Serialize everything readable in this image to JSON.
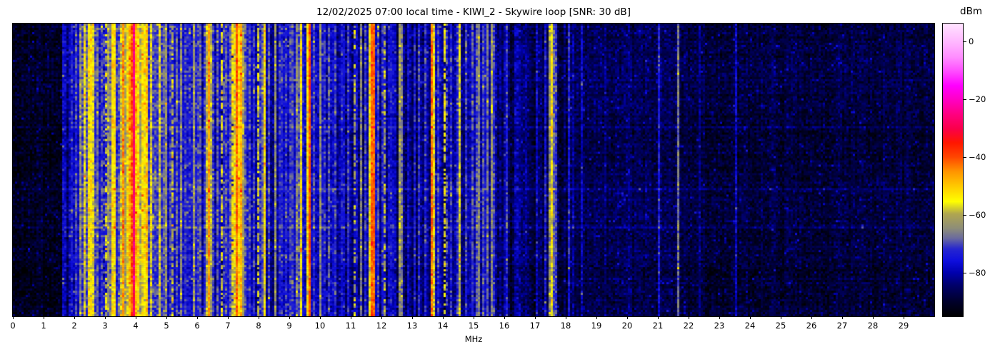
{
  "chart_data": {
    "type": "heatmap",
    "subtype": "spectrogram-waterfall",
    "title": "12/02/2025 07:00 local time - KIWI_2 - Skywire loop [SNR: 30 dB]",
    "xlabel": "MHz",
    "value_label": "dBm",
    "x_range_mhz": [
      0,
      30
    ],
    "x_ticks": [
      0,
      1,
      2,
      3,
      4,
      5,
      6,
      7,
      8,
      9,
      10,
      11,
      12,
      13,
      14,
      15,
      16,
      17,
      18,
      19,
      20,
      21,
      22,
      23,
      24,
      25,
      26,
      27,
      28,
      29
    ],
    "value_range_dbm": [
      -95,
      6.2
    ],
    "colorbar_tick_values": [
      0,
      -20,
      -40,
      -60,
      -80
    ],
    "colorbar_tick_labels": [
      "0",
      "−20",
      "−40",
      "−60",
      "−80"
    ],
    "legend_position": "right-colorbar",
    "grid": {
      "cols": 430,
      "rows": 137
    },
    "seed": 1337,
    "colormap_stops": [
      [
        0.0,
        "#000000"
      ],
      [
        0.05,
        "#00002a"
      ],
      [
        0.105,
        "#000068"
      ],
      [
        0.149,
        "#0000ad"
      ],
      [
        0.19,
        "#0e0edd"
      ],
      [
        0.23,
        "#2626cf"
      ],
      [
        0.265,
        "#6868a0"
      ],
      [
        0.3,
        "#8d8d79"
      ],
      [
        0.35,
        "#b0a64f"
      ],
      [
        0.392,
        "#ffff00"
      ],
      [
        0.446,
        "#ffc800"
      ],
      [
        0.495,
        "#ff9400"
      ],
      [
        0.544,
        "#ff4600"
      ],
      [
        0.593,
        "#ff1600"
      ],
      [
        0.64,
        "#fa0049"
      ],
      [
        0.69,
        "#ff0080"
      ],
      [
        0.739,
        "#ff00c2"
      ],
      [
        0.788,
        "#ff00ff"
      ],
      [
        0.837,
        "#ff4dff"
      ],
      [
        0.885,
        "#ff8dff"
      ],
      [
        0.934,
        "#ffb5ff"
      ],
      [
        1.0,
        "#ffe3ff"
      ]
    ],
    "noise_floor_segments": [
      [
        0.0,
        1.62,
        -91
      ],
      [
        1.62,
        2.12,
        -83
      ],
      [
        2.12,
        5.5,
        -75
      ],
      [
        5.5,
        8.6,
        -78
      ],
      [
        8.6,
        12.5,
        -80
      ],
      [
        12.5,
        14.85,
        -83
      ],
      [
        14.85,
        15.65,
        -78
      ],
      [
        15.65,
        18.3,
        -85
      ],
      [
        18.3,
        22.0,
        -87
      ],
      [
        22.0,
        30.0,
        -88.5
      ]
    ],
    "noise_sigma_db": 2.6,
    "speckle_prob": 0.05,
    "speckle_boost_db": 6.5,
    "column_jitter_db": 5,
    "row_jitter_db": 1.2,
    "bright_rows": [
      0.19,
      0.35,
      0.56,
      0.69
    ],
    "bright_row_boost_db": 3.5,
    "stripes": [
      {
        "f": 1.64,
        "w": 0.05,
        "p": -77
      },
      {
        "f": 1.82,
        "w": 0.05,
        "p": -78
      },
      {
        "f": 1.95,
        "w": 0.07,
        "p": -74
      },
      {
        "f": 2.06,
        "w": 0.05,
        "p": -71
      },
      {
        "f": 2.18,
        "w": 0.06,
        "p": -64
      },
      {
        "f": 2.31,
        "w": 0.07,
        "p": -57
      },
      {
        "f": 2.43,
        "w": 0.05,
        "p": -69
      },
      {
        "f": 2.52,
        "w": 0.09,
        "p": -54
      },
      {
        "f": 2.63,
        "w": 0.06,
        "p": -57
      },
      {
        "f": 2.78,
        "w": 0.06,
        "p": -67
      },
      {
        "f": 2.9,
        "w": 0.12,
        "p": -70
      },
      {
        "f": 3.02,
        "w": 0.05,
        "p": -58,
        "d": 0.55
      },
      {
        "f": 3.13,
        "w": 0.04,
        "p": -63
      },
      {
        "f": 3.27,
        "w": 0.14,
        "p": -53
      },
      {
        "f": 3.44,
        "w": 0.05,
        "p": -68
      },
      {
        "f": 3.56,
        "w": 0.04,
        "p": -45
      },
      {
        "f": 3.62,
        "w": 0.07,
        "p": -56
      },
      {
        "f": 3.68,
        "w": 0.04,
        "p": -62
      },
      {
        "f": 3.74,
        "w": 0.05,
        "p": -55
      },
      {
        "f": 3.8,
        "w": 0.04,
        "p": -48
      },
      {
        "f": 3.93,
        "w": 0.025,
        "p": -27,
        "v": 1.5
      },
      {
        "f": 3.99,
        "w": 0.05,
        "p": -49
      },
      {
        "f": 4.07,
        "w": 0.09,
        "p": -53
      },
      {
        "f": 4.15,
        "w": 0.04,
        "p": -61
      },
      {
        "f": 4.25,
        "w": 0.09,
        "p": -54
      },
      {
        "f": 4.34,
        "w": 0.05,
        "p": -50
      },
      {
        "f": 4.48,
        "w": 0.06,
        "p": -57
      },
      {
        "f": 4.61,
        "w": 0.09,
        "p": -70
      },
      {
        "f": 4.73,
        "w": 0.05,
        "p": -72
      },
      {
        "f": 4.81,
        "w": 0.04,
        "p": -58
      },
      {
        "f": 4.93,
        "w": 0.05,
        "p": -69
      },
      {
        "f": 5.01,
        "w": 0.05,
        "p": -64
      },
      {
        "f": 5.12,
        "w": 0.05,
        "p": -71
      },
      {
        "f": 5.22,
        "w": 0.05,
        "p": -60,
        "d": 0.7
      },
      {
        "f": 5.36,
        "w": 0.05,
        "p": -69
      },
      {
        "f": 5.46,
        "w": 0.04,
        "p": -65
      },
      {
        "f": 5.62,
        "w": 0.1,
        "p": -71
      },
      {
        "f": 5.78,
        "w": 0.05,
        "p": -73
      },
      {
        "f": 5.91,
        "w": 0.03,
        "p": -63
      },
      {
        "f": 6.03,
        "w": 0.08,
        "p": -71
      },
      {
        "f": 6.13,
        "w": 0.05,
        "p": -69
      },
      {
        "f": 6.27,
        "w": 0.05,
        "p": -72
      },
      {
        "f": 6.38,
        "w": 0.04,
        "p": -46,
        "v": 2
      },
      {
        "f": 6.52,
        "w": 0.05,
        "p": -71
      },
      {
        "f": 6.64,
        "w": 0.05,
        "p": -69
      },
      {
        "f": 6.82,
        "w": 0.05,
        "p": -58,
        "d": 0.8
      },
      {
        "f": 6.97,
        "w": 0.05,
        "p": -70
      },
      {
        "f": 7.07,
        "w": 0.05,
        "p": -69
      },
      {
        "f": 7.17,
        "w": 0.05,
        "p": -56,
        "d": 0.85
      },
      {
        "f": 7.27,
        "w": 0.04,
        "p": -42,
        "v": 2
      },
      {
        "f": 7.37,
        "w": 0.08,
        "p": -52
      },
      {
        "f": 7.46,
        "w": 0.05,
        "p": -48
      },
      {
        "f": 7.58,
        "w": 0.05,
        "p": -69
      },
      {
        "f": 7.72,
        "w": 0.05,
        "p": -71
      },
      {
        "f": 7.86,
        "w": 0.05,
        "p": -72
      },
      {
        "f": 8.02,
        "w": 0.04,
        "p": -58,
        "d": 0.8
      },
      {
        "f": 8.19,
        "w": 0.05,
        "p": -54
      },
      {
        "f": 8.37,
        "w": 0.05,
        "p": -71
      },
      {
        "f": 8.56,
        "w": 0.03,
        "p": -64
      },
      {
        "f": 8.72,
        "w": 0.05,
        "p": -73
      },
      {
        "f": 8.92,
        "w": 0.05,
        "p": -72
      },
      {
        "f": 9.07,
        "w": 0.05,
        "p": -71
      },
      {
        "f": 9.22,
        "w": 0.03,
        "p": -65
      },
      {
        "f": 9.37,
        "w": 0.04,
        "p": -55
      },
      {
        "f": 9.65,
        "w": 0.05,
        "p": -40,
        "v": 2
      },
      {
        "f": 9.82,
        "w": 0.05,
        "p": -71
      },
      {
        "f": 10.0,
        "w": 0.04,
        "p": -64
      },
      {
        "f": 10.15,
        "w": 0.05,
        "p": -73
      },
      {
        "f": 10.32,
        "w": 0.05,
        "p": -70
      },
      {
        "f": 10.52,
        "w": 0.05,
        "p": -71
      },
      {
        "f": 10.72,
        "w": 0.05,
        "p": -74
      },
      {
        "f": 10.92,
        "w": 0.05,
        "p": -72
      },
      {
        "f": 11.12,
        "w": 0.04,
        "p": -60,
        "d": 0.6
      },
      {
        "f": 11.32,
        "w": 0.03,
        "p": -66
      },
      {
        "f": 11.5,
        "w": 0.05,
        "p": -71
      },
      {
        "f": 11.63,
        "w": 0.03,
        "p": -55
      },
      {
        "f": 11.72,
        "w": 0.06,
        "p": -42,
        "v": 2
      },
      {
        "f": 11.88,
        "w": 0.05,
        "p": -70
      },
      {
        "f": 12.02,
        "w": 0.05,
        "p": -73
      },
      {
        "f": 12.12,
        "w": 0.03,
        "p": -61,
        "d": 0.6
      },
      {
        "f": 12.58,
        "w": 0.04,
        "p": -63
      },
      {
        "f": 12.68,
        "w": 0.03,
        "p": -66
      },
      {
        "f": 12.85,
        "w": 0.04,
        "p": -78
      },
      {
        "f": 13.05,
        "w": 0.05,
        "p": -74
      },
      {
        "f": 13.25,
        "w": 0.05,
        "p": -72
      },
      {
        "f": 13.45,
        "w": 0.05,
        "p": -73
      },
      {
        "f": 13.65,
        "w": 0.05,
        "p": -43,
        "v": 2.5
      },
      {
        "f": 13.82,
        "w": 0.05,
        "p": -71
      },
      {
        "f": 14.07,
        "w": 0.04,
        "p": -56,
        "d": 0.65
      },
      {
        "f": 14.25,
        "w": 0.05,
        "p": -73
      },
      {
        "f": 14.54,
        "w": 0.035,
        "p": -58
      },
      {
        "f": 14.78,
        "w": 0.05,
        "p": -72
      },
      {
        "f": 14.95,
        "w": 0.05,
        "p": -70
      },
      {
        "f": 15.1,
        "w": 0.05,
        "p": -69
      },
      {
        "f": 15.18,
        "w": 0.03,
        "p": -65
      },
      {
        "f": 15.3,
        "w": 0.05,
        "p": -70
      },
      {
        "f": 15.42,
        "w": 0.04,
        "p": -67
      },
      {
        "f": 15.56,
        "w": 0.04,
        "p": -63
      },
      {
        "f": 15.65,
        "w": 0.04,
        "p": -72
      },
      {
        "f": 16.1,
        "w": 0.05,
        "p": -73
      },
      {
        "f": 16.45,
        "w": 0.04,
        "p": -80
      },
      {
        "f": 17.05,
        "w": 0.04,
        "p": -79
      },
      {
        "f": 17.33,
        "w": 0.04,
        "p": -75
      },
      {
        "f": 17.47,
        "w": 0.06,
        "p": -64
      },
      {
        "f": 17.56,
        "w": 0.025,
        "p": -56
      },
      {
        "f": 17.65,
        "w": 0.04,
        "p": -72
      },
      {
        "f": 18.08,
        "w": 0.05,
        "p": -74
      },
      {
        "f": 18.5,
        "w": 0.04,
        "p": -78
      },
      {
        "f": 19.3,
        "w": 0.04,
        "p": -83
      },
      {
        "f": 20.05,
        "w": 0.04,
        "p": -84
      },
      {
        "f": 21.05,
        "w": 0.035,
        "p": -74
      },
      {
        "f": 21.65,
        "w": 0.045,
        "p": -67
      },
      {
        "f": 22.35,
        "w": 0.03,
        "p": -83
      },
      {
        "f": 23.53,
        "w": 0.025,
        "p": -78
      }
    ]
  }
}
